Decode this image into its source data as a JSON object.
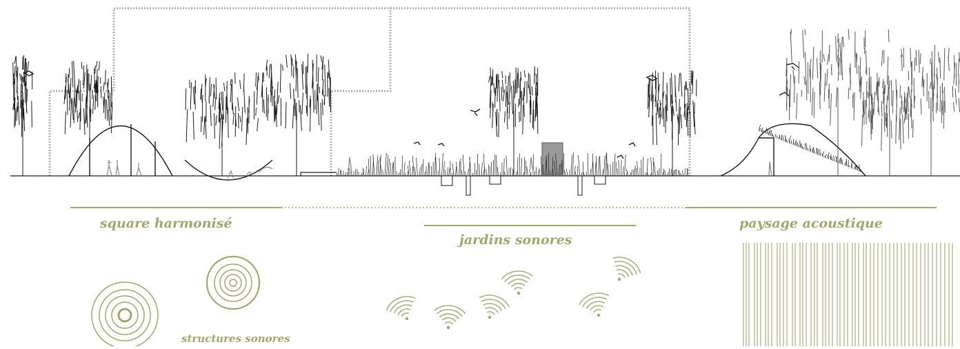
{
  "labels": {
    "square": "square harmonisé",
    "jardins": "jardins sonores",
    "paysage": "paysage acoustique",
    "structures": "structures sonores"
  },
  "colors": {
    "accent": "#a3a66b",
    "ink": "#1a1a1a",
    "grey": "#8a8a8a",
    "dotted": "#b5b5b5"
  },
  "icons": [
    "concentric-circles-icon",
    "wifi-wave-icon",
    "vertical-lines-pattern-icon",
    "tree-icon",
    "bird-icon",
    "person-icon"
  ]
}
